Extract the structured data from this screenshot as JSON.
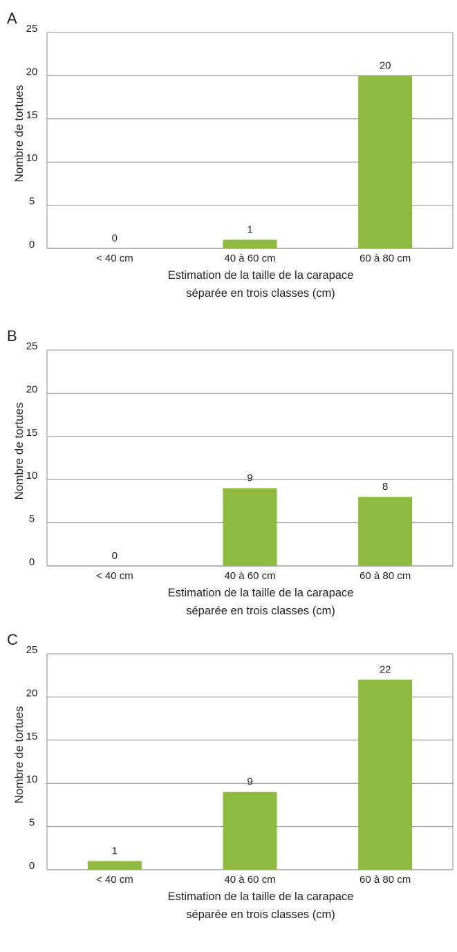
{
  "chart_data": [
    {
      "type": "bar",
      "panel_label": "A",
      "categories": [
        "< 40 cm",
        "40 à 60 cm",
        "60 à 80 cm"
      ],
      "values": [
        0,
        1,
        20
      ],
      "data_labels": [
        "0",
        "1",
        "20"
      ],
      "ylabel": "Nombre de tortues",
      "xlabel_line1": "Estimation de la taille de la carapace",
      "xlabel_line2": "séparée en trois classes (cm)",
      "ylim": [
        0,
        25
      ],
      "yticks": [
        "0",
        "5",
        "10",
        "15",
        "20",
        "25"
      ],
      "grid": true,
      "bar_color": "#8dba3f"
    },
    {
      "type": "bar",
      "panel_label": "B",
      "categories": [
        "< 40 cm",
        "40 à 60 cm",
        "60 à 80 cm"
      ],
      "values": [
        0,
        9,
        8
      ],
      "data_labels": [
        "0",
        "9",
        "8"
      ],
      "ylabel": "Nombre de tortues",
      "xlabel_line1": "Estimation de la taille de la carapace",
      "xlabel_line2": "séparée en trois classes (cm)",
      "ylim": [
        0,
        25
      ],
      "yticks": [
        "0",
        "5",
        "10",
        "15",
        "20",
        "25"
      ],
      "grid": true,
      "bar_color": "#8dba3f"
    },
    {
      "type": "bar",
      "panel_label": "C",
      "categories": [
        "< 40 cm",
        "40 à 60 cm",
        "60 à 80 cm"
      ],
      "values": [
        1,
        9,
        22
      ],
      "data_labels": [
        "1",
        "9",
        "22"
      ],
      "ylabel": "Nombre de tortues",
      "xlabel_line1": "Estimation de la taille de la carapace",
      "xlabel_line2": "séparée en trois classes (cm)",
      "ylim": [
        0,
        25
      ],
      "yticks": [
        "0",
        "5",
        "10",
        "15",
        "20",
        "25"
      ],
      "grid": true,
      "bar_color": "#8dba3f"
    }
  ]
}
